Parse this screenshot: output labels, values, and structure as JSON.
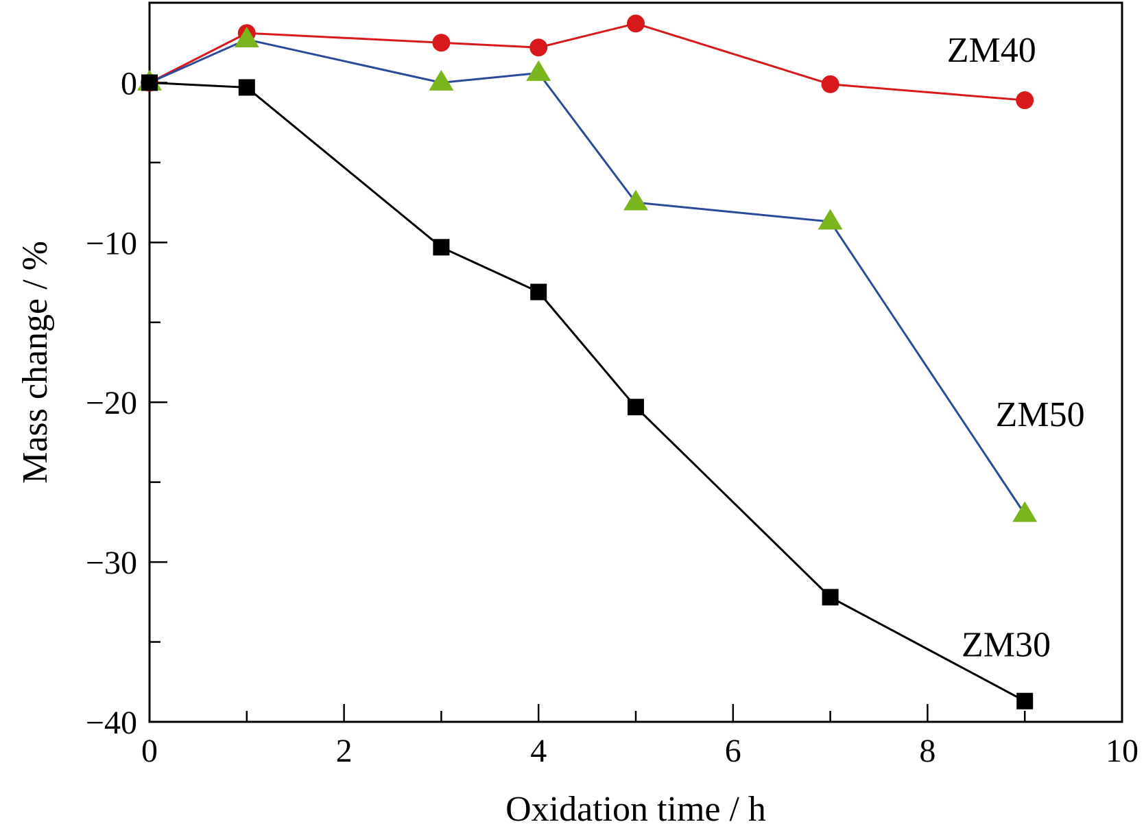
{
  "chart_data": {
    "type": "line",
    "title": "",
    "xlabel": "Oxidation time / h",
    "ylabel": "Mass change / %",
    "xlim": [
      0,
      10
    ],
    "ylim": [
      -40,
      5
    ],
    "x_ticks": [
      0,
      2,
      4,
      6,
      8,
      10
    ],
    "x_minor_ticks": [
      1,
      3,
      5,
      7,
      9
    ],
    "x_tick_labels": [
      "0",
      "2",
      "4",
      "6",
      "8",
      "10"
    ],
    "y_ticks": [
      0,
      -10,
      -20,
      -30,
      -40
    ],
    "y_minor_ticks": [
      -5,
      -15,
      -25,
      -35
    ],
    "y_tick_labels": [
      "0",
      "−10",
      "−20",
      "−30",
      "−40"
    ],
    "grid": false,
    "legend": "none",
    "series": [
      {
        "name": "ZM40",
        "color": "#d7191c",
        "marker": "circle",
        "label_x": 8.2,
        "label_y": 1.3,
        "x": [
          0,
          1,
          3,
          4,
          5,
          7,
          9
        ],
        "y": [
          0,
          3.1,
          2.5,
          2.2,
          3.7,
          -0.1,
          -1.1
        ]
      },
      {
        "name": "ZM50",
        "color": "#2a4a9a",
        "marker_color": "#7ab51d",
        "marker": "triangle",
        "label_x": 8.7,
        "label_y": -21.5,
        "x": [
          0,
          1,
          3,
          4,
          5,
          7,
          9
        ],
        "y": [
          0,
          2.7,
          0,
          0.6,
          -7.5,
          -8.7,
          -27.0
        ]
      },
      {
        "name": "ZM30",
        "color": "#000000",
        "marker": "square",
        "label_x": 8.35,
        "label_y": -35.9,
        "x": [
          0,
          1,
          3,
          4,
          5,
          7,
          9
        ],
        "y": [
          0,
          -0.3,
          -10.3,
          -13.1,
          -20.3,
          -32.2,
          -38.7
        ]
      }
    ]
  }
}
